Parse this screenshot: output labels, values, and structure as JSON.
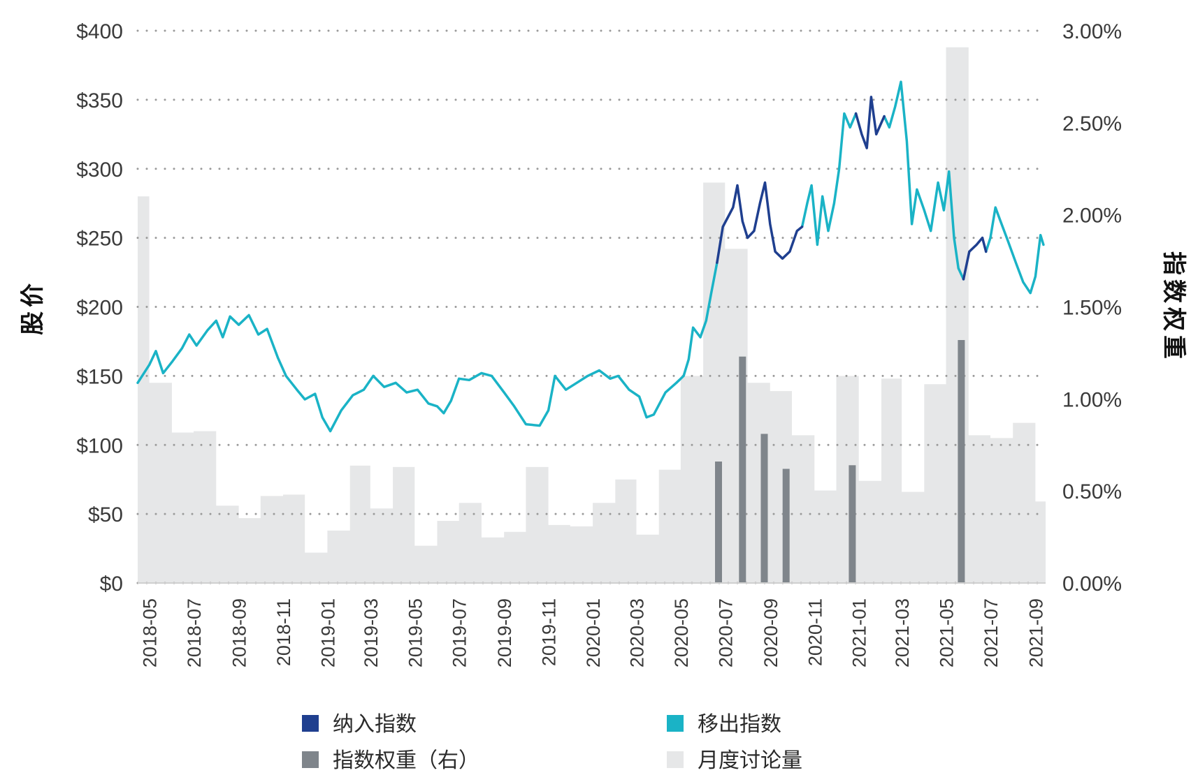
{
  "chart_data": {
    "type": "line",
    "left_axis": {
      "title": "股价",
      "ticks": [
        "$0",
        "$50",
        "$100",
        "$150",
        "$200",
        "$250",
        "$300",
        "$350",
        "$400"
      ],
      "range": [
        0,
        400
      ]
    },
    "right_axis": {
      "title": "指数权重",
      "ticks": [
        "0.00%",
        "0.50%",
        "1.00%",
        "1.50%",
        "2.00%",
        "2.50%",
        "3.00%"
      ],
      "range": [
        0,
        3
      ]
    },
    "x_axis": {
      "ticks": [
        "2018-05",
        "2018-07",
        "2018-09",
        "2018-11",
        "2019-01",
        "2019-03",
        "2019-05",
        "2019-07",
        "2019-09",
        "2019-11",
        "2020-01",
        "2020-03",
        "2020-05",
        "2020-07",
        "2020-09",
        "2020-11",
        "2021-01",
        "2021-03",
        "2021-05",
        "2021-07",
        "2021-09"
      ],
      "start": "2018-04-15",
      "end": "2021-09-15"
    },
    "grid": "horizontal dotted",
    "legend_position": "bottom",
    "legend": [
      {
        "label": "纳入指数",
        "color": "#1f3f8f"
      },
      {
        "label": "移出指数",
        "color": "#1ab3c6"
      },
      {
        "label": "指数权重（右）",
        "color": "#7f858b"
      },
      {
        "label": "月度讨论量",
        "color": "#e6e7e8"
      }
    ],
    "series": [
      {
        "name": "月度讨论量",
        "kind": "area-step",
        "color": "#e6e7e8",
        "points": [
          [
            "2018-04-15",
            280
          ],
          [
            "2018-05-01",
            145
          ],
          [
            "2018-06-01",
            109
          ],
          [
            "2018-07-01",
            110
          ],
          [
            "2018-08-01",
            56
          ],
          [
            "2018-09-01",
            47
          ],
          [
            "2018-10-01",
            63
          ],
          [
            "2018-11-01",
            64
          ],
          [
            "2018-12-01",
            22
          ],
          [
            "2019-01-01",
            38
          ],
          [
            "2019-02-01",
            85
          ],
          [
            "2019-03-01",
            54
          ],
          [
            "2019-04-01",
            84
          ],
          [
            "2019-05-01",
            27
          ],
          [
            "2019-06-01",
            45
          ],
          [
            "2019-07-01",
            58
          ],
          [
            "2019-08-01",
            33
          ],
          [
            "2019-09-01",
            37
          ],
          [
            "2019-10-01",
            84
          ],
          [
            "2019-11-01",
            42
          ],
          [
            "2019-12-01",
            41
          ],
          [
            "2020-01-01",
            58
          ],
          [
            "2020-02-01",
            75
          ],
          [
            "2020-03-01",
            35
          ],
          [
            "2020-04-01",
            82
          ],
          [
            "2020-05-01",
            150
          ],
          [
            "2020-06-01",
            290
          ],
          [
            "2020-07-01",
            242
          ],
          [
            "2020-08-01",
            145
          ],
          [
            "2020-09-01",
            139
          ],
          [
            "2020-10-01",
            107
          ],
          [
            "2020-11-01",
            67
          ],
          [
            "2020-12-01",
            150
          ],
          [
            "2021-01-01",
            74
          ],
          [
            "2021-02-01",
            148
          ],
          [
            "2021-03-01",
            66
          ],
          [
            "2021-04-01",
            144
          ],
          [
            "2021-05-01",
            388
          ],
          [
            "2021-06-01",
            107
          ],
          [
            "2021-07-01",
            105
          ],
          [
            "2021-08-01",
            116
          ],
          [
            "2021-09-01",
            59
          ]
        ]
      },
      {
        "name": "指数权重（右）",
        "kind": "bar",
        "axis": "right",
        "color": "#7f858b",
        "points": [
          [
            "2020-06-22",
            0.66
          ],
          [
            "2020-07-25",
            1.23
          ],
          [
            "2020-08-24",
            0.81
          ],
          [
            "2020-09-23",
            0.62
          ],
          [
            "2020-12-23",
            0.64
          ],
          [
            "2021-05-22",
            1.32
          ]
        ]
      },
      {
        "name": "移出指数",
        "kind": "line",
        "color": "#1ab3c6",
        "points": [
          [
            "2018-04-15",
            145
          ],
          [
            "2018-05-01",
            158
          ],
          [
            "2018-05-10",
            168
          ],
          [
            "2018-05-20",
            152
          ],
          [
            "2018-06-01",
            160
          ],
          [
            "2018-06-15",
            170
          ],
          [
            "2018-06-25",
            180
          ],
          [
            "2018-07-05",
            172
          ],
          [
            "2018-07-20",
            183
          ],
          [
            "2018-08-01",
            190
          ],
          [
            "2018-08-10",
            178
          ],
          [
            "2018-08-20",
            193
          ],
          [
            "2018-09-01",
            187
          ],
          [
            "2018-09-15",
            194
          ],
          [
            "2018-09-28",
            180
          ],
          [
            "2018-10-10",
            184
          ],
          [
            "2018-10-25",
            163
          ],
          [
            "2018-11-05",
            150
          ],
          [
            "2018-11-20",
            140
          ],
          [
            "2018-12-01",
            133
          ],
          [
            "2018-12-15",
            137
          ],
          [
            "2018-12-25",
            120
          ],
          [
            "2019-01-05",
            110
          ],
          [
            "2019-01-20",
            125
          ],
          [
            "2019-02-05",
            136
          ],
          [
            "2019-02-20",
            140
          ],
          [
            "2019-03-05",
            150
          ],
          [
            "2019-03-20",
            142
          ],
          [
            "2019-04-05",
            145
          ],
          [
            "2019-04-20",
            138
          ],
          [
            "2019-05-05",
            140
          ],
          [
            "2019-05-20",
            130
          ],
          [
            "2019-06-01",
            128
          ],
          [
            "2019-06-10",
            123
          ],
          [
            "2019-06-20",
            132
          ],
          [
            "2019-07-01",
            148
          ],
          [
            "2019-07-15",
            147
          ],
          [
            "2019-08-01",
            152
          ],
          [
            "2019-08-15",
            150
          ],
          [
            "2019-09-01",
            138
          ],
          [
            "2019-09-15",
            128
          ],
          [
            "2019-10-01",
            115
          ],
          [
            "2019-10-20",
            114
          ],
          [
            "2019-11-01",
            125
          ],
          [
            "2019-11-10",
            150
          ],
          [
            "2019-11-25",
            140
          ],
          [
            "2019-12-10",
            145
          ],
          [
            "2019-12-25",
            150
          ],
          [
            "2020-01-10",
            154
          ],
          [
            "2020-01-25",
            148
          ],
          [
            "2020-02-05",
            150
          ],
          [
            "2020-02-20",
            140
          ],
          [
            "2020-03-05",
            135
          ],
          [
            "2020-03-15",
            120
          ],
          [
            "2020-03-25",
            122
          ],
          [
            "2020-04-10",
            138
          ],
          [
            "2020-04-25",
            145
          ],
          [
            "2020-05-05",
            150
          ],
          [
            "2020-05-12",
            162
          ],
          [
            "2020-05-18",
            185
          ],
          [
            "2020-05-28",
            178
          ],
          [
            "2020-06-05",
            190
          ],
          [
            "2020-06-12",
            210
          ],
          [
            "2020-06-20",
            232
          ],
          [
            "2020-06-20",
            null
          ],
          [
            "2020-10-15",
            258
          ],
          [
            "2020-10-22",
            275
          ],
          [
            "2020-10-28",
            288
          ],
          [
            "2020-11-05",
            245
          ],
          [
            "2020-11-12",
            280
          ],
          [
            "2020-11-20",
            255
          ],
          [
            "2020-11-28",
            275
          ],
          [
            "2020-12-05",
            300
          ],
          [
            "2020-12-12",
            340
          ],
          [
            "2020-12-20",
            330
          ],
          [
            "2020-12-28",
            340
          ],
          [
            "2020-12-28",
            null
          ],
          [
            "2021-02-05",
            338
          ],
          [
            "2021-02-12",
            330
          ],
          [
            "2021-02-20",
            345
          ],
          [
            "2021-02-28",
            363
          ],
          [
            "2021-03-08",
            320
          ],
          [
            "2021-03-15",
            260
          ],
          [
            "2021-03-22",
            285
          ],
          [
            "2021-04-01",
            270
          ],
          [
            "2021-04-10",
            255
          ],
          [
            "2021-04-20",
            290
          ],
          [
            "2021-04-28",
            270
          ],
          [
            "2021-05-05",
            298
          ],
          [
            "2021-05-12",
            250
          ],
          [
            "2021-05-18",
            228
          ],
          [
            "2021-05-25",
            220
          ],
          [
            "2021-05-25",
            null
          ],
          [
            "2021-06-25",
            240
          ],
          [
            "2021-07-01",
            250
          ],
          [
            "2021-07-08",
            272
          ],
          [
            "2021-07-15",
            262
          ],
          [
            "2021-07-25",
            248
          ],
          [
            "2021-08-05",
            232
          ],
          [
            "2021-08-15",
            218
          ],
          [
            "2021-08-25",
            210
          ],
          [
            "2021-09-01",
            222
          ],
          [
            "2021-09-08",
            252
          ],
          [
            "2021-09-12",
            245
          ]
        ]
      },
      {
        "name": "纳入指数",
        "kind": "line",
        "color": "#1f3f8f",
        "points": [
          [
            "2020-06-20",
            232
          ],
          [
            "2020-06-28",
            258
          ],
          [
            "2020-07-05",
            265
          ],
          [
            "2020-07-12",
            272
          ],
          [
            "2020-07-18",
            288
          ],
          [
            "2020-07-25",
            262
          ],
          [
            "2020-08-01",
            250
          ],
          [
            "2020-08-10",
            255
          ],
          [
            "2020-08-18",
            275
          ],
          [
            "2020-08-25",
            290
          ],
          [
            "2020-09-01",
            260
          ],
          [
            "2020-09-08",
            240
          ],
          [
            "2020-09-18",
            235
          ],
          [
            "2020-09-28",
            240
          ],
          [
            "2020-10-08",
            255
          ],
          [
            "2020-10-15",
            258
          ],
          [
            "2020-10-15",
            null
          ],
          [
            "2020-12-28",
            340
          ],
          [
            "2021-01-05",
            325
          ],
          [
            "2021-01-12",
            315
          ],
          [
            "2021-01-18",
            352
          ],
          [
            "2021-01-25",
            325
          ],
          [
            "2021-02-05",
            338
          ],
          [
            "2021-02-05",
            null
          ],
          [
            "2021-05-25",
            220
          ],
          [
            "2021-06-02",
            240
          ],
          [
            "2021-06-12",
            245
          ],
          [
            "2021-06-20",
            250
          ],
          [
            "2021-06-25",
            240
          ]
        ]
      }
    ]
  }
}
